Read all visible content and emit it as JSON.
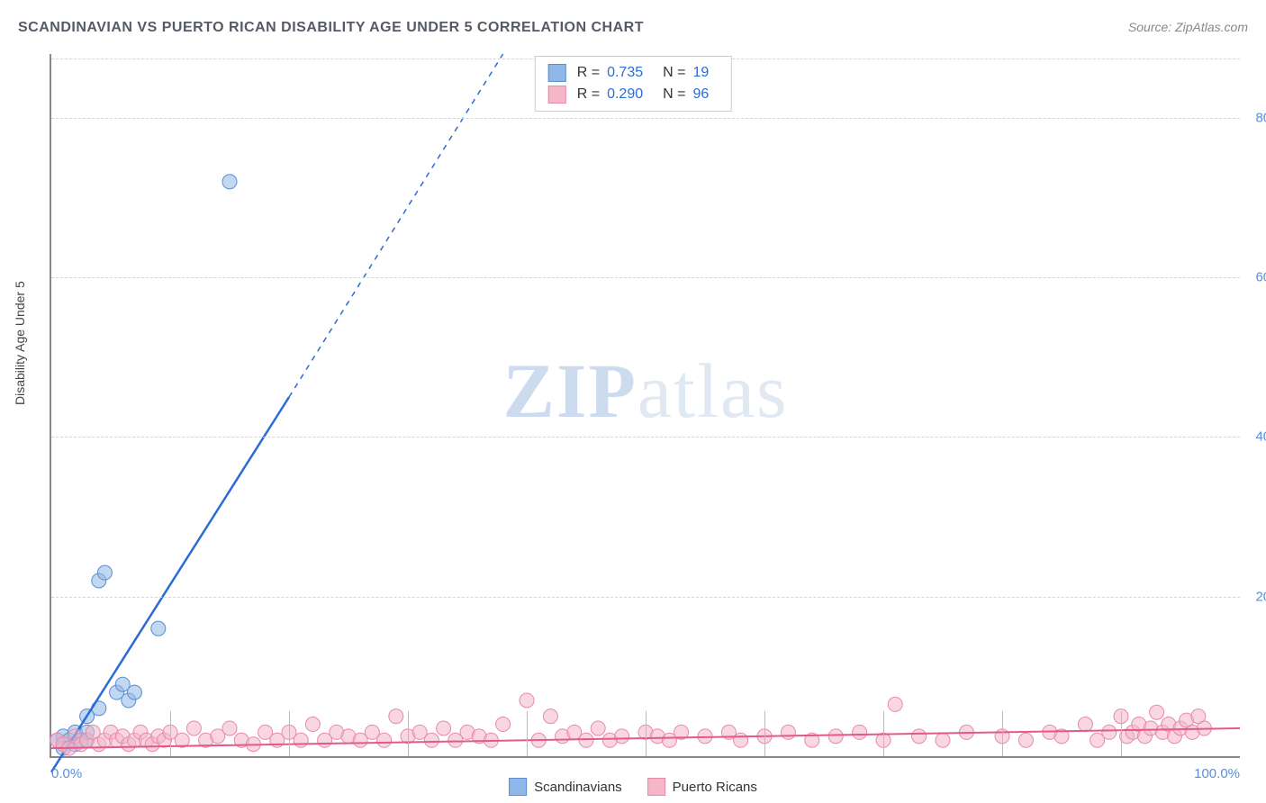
{
  "title": "SCANDINAVIAN VS PUERTO RICAN DISABILITY AGE UNDER 5 CORRELATION CHART",
  "source": "Source: ZipAtlas.com",
  "ylabel": "Disability Age Under 5",
  "watermark_bold": "ZIP",
  "watermark_light": "atlas",
  "chart": {
    "type": "scatter",
    "xlim": [
      0,
      100
    ],
    "ylim": [
      0,
      88
    ],
    "x_ticks": [
      0,
      50,
      100
    ],
    "x_tick_labels": [
      "0.0%",
      "",
      "100.0%"
    ],
    "x_minor_ticks": [
      10,
      20,
      30,
      40,
      50,
      60,
      70,
      80,
      90
    ],
    "y_ticks": [
      20,
      40,
      60,
      80
    ],
    "y_tick_labels": [
      "20.0%",
      "40.0%",
      "60.0%",
      "80.0%"
    ],
    "grid_color": "#d5d5d5",
    "axis_color": "#888888",
    "background_color": "#ffffff",
    "marker_radius": 8,
    "marker_opacity": 0.55,
    "series": [
      {
        "name": "Scandinavians",
        "color": "#8fb8e8",
        "stroke": "#5a8cd0",
        "r_value": "0.735",
        "n_value": "19",
        "trend": {
          "x1": 0,
          "y1": -2,
          "x2_solid": 20,
          "y2_solid": 45,
          "x2_dash": 38,
          "y2_dash": 88,
          "color": "#2b6cd4",
          "width": 2.5
        },
        "points": [
          [
            0.5,
            2
          ],
          [
            1,
            2.5
          ],
          [
            1.5,
            2
          ],
          [
            2,
            3
          ],
          [
            2.5,
            2
          ],
          [
            3,
            5
          ],
          [
            3,
            3
          ],
          [
            4,
            22
          ],
          [
            4.5,
            23
          ],
          [
            5.5,
            8
          ],
          [
            6,
            9
          ],
          [
            6.5,
            7
          ],
          [
            7,
            8
          ],
          [
            9,
            16
          ],
          [
            15,
            72
          ],
          [
            1,
            1
          ],
          [
            2,
            1.5
          ],
          [
            3,
            2
          ],
          [
            4,
            6
          ]
        ]
      },
      {
        "name": "Puerto Ricans",
        "color": "#f4b6c8",
        "stroke": "#e889a8",
        "r_value": "0.290",
        "n_value": "96",
        "trend": {
          "x1": 0,
          "y1": 1,
          "x2_solid": 100,
          "y2_solid": 3.5,
          "color": "#e05a8a",
          "width": 2
        },
        "points": [
          [
            0.5,
            2
          ],
          [
            1,
            1.5
          ],
          [
            1.5,
            1
          ],
          [
            2,
            2.5
          ],
          [
            2.5,
            1.5
          ],
          [
            3,
            2
          ],
          [
            3.5,
            3
          ],
          [
            4,
            1.5
          ],
          [
            4.5,
            2
          ],
          [
            5,
            3
          ],
          [
            5.5,
            2
          ],
          [
            6,
            2.5
          ],
          [
            6.5,
            1.5
          ],
          [
            7,
            2
          ],
          [
            7.5,
            3
          ],
          [
            8,
            2
          ],
          [
            8.5,
            1.5
          ],
          [
            9,
            2.5
          ],
          [
            9.5,
            2
          ],
          [
            10,
            3
          ],
          [
            11,
            2
          ],
          [
            12,
            3.5
          ],
          [
            13,
            2
          ],
          [
            14,
            2.5
          ],
          [
            15,
            3.5
          ],
          [
            16,
            2
          ],
          [
            17,
            1.5
          ],
          [
            18,
            3
          ],
          [
            19,
            2
          ],
          [
            20,
            3
          ],
          [
            21,
            2
          ],
          [
            22,
            4
          ],
          [
            23,
            2
          ],
          [
            24,
            3
          ],
          [
            25,
            2.5
          ],
          [
            26,
            2
          ],
          [
            27,
            3
          ],
          [
            28,
            2
          ],
          [
            29,
            5
          ],
          [
            30,
            2.5
          ],
          [
            31,
            3
          ],
          [
            32,
            2
          ],
          [
            33,
            3.5
          ],
          [
            34,
            2
          ],
          [
            35,
            3
          ],
          [
            36,
            2.5
          ],
          [
            37,
            2
          ],
          [
            38,
            4
          ],
          [
            40,
            7
          ],
          [
            41,
            2
          ],
          [
            42,
            5
          ],
          [
            43,
            2.5
          ],
          [
            44,
            3
          ],
          [
            45,
            2
          ],
          [
            46,
            3.5
          ],
          [
            47,
            2
          ],
          [
            48,
            2.5
          ],
          [
            50,
            3
          ],
          [
            51,
            2.5
          ],
          [
            52,
            2
          ],
          [
            53,
            3
          ],
          [
            55,
            2.5
          ],
          [
            57,
            3
          ],
          [
            58,
            2
          ],
          [
            60,
            2.5
          ],
          [
            62,
            3
          ],
          [
            64,
            2
          ],
          [
            66,
            2.5
          ],
          [
            68,
            3
          ],
          [
            70,
            2
          ],
          [
            71,
            6.5
          ],
          [
            73,
            2.5
          ],
          [
            75,
            2
          ],
          [
            77,
            3
          ],
          [
            80,
            2.5
          ],
          [
            82,
            2
          ],
          [
            84,
            3
          ],
          [
            85,
            2.5
          ],
          [
            87,
            4
          ],
          [
            88,
            2
          ],
          [
            89,
            3
          ],
          [
            90,
            5
          ],
          [
            90.5,
            2.5
          ],
          [
            91,
            3
          ],
          [
            91.5,
            4
          ],
          [
            92,
            2.5
          ],
          [
            92.5,
            3.5
          ],
          [
            93,
            5.5
          ],
          [
            93.5,
            3
          ],
          [
            94,
            4
          ],
          [
            94.5,
            2.5
          ],
          [
            95,
            3.5
          ],
          [
            95.5,
            4.5
          ],
          [
            96,
            3
          ],
          [
            96.5,
            5
          ],
          [
            97,
            3.5
          ]
        ]
      }
    ]
  },
  "legend_bottom": [
    {
      "label": "Scandinavians",
      "color": "#8fb8e8",
      "stroke": "#5a8cd0"
    },
    {
      "label": "Puerto Ricans",
      "color": "#f4b6c8",
      "stroke": "#e889a8"
    }
  ]
}
